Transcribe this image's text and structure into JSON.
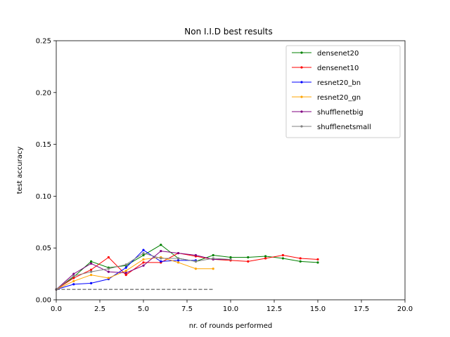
{
  "chart_data": {
    "type": "line",
    "title": "Non I.I.D best results",
    "xlabel": "nr. of rounds performed",
    "ylabel": "test accuracy",
    "xlim": [
      0,
      20
    ],
    "ylim": [
      0,
      0.25
    ],
    "xticks": [
      0,
      2.5,
      5,
      7.5,
      10,
      12.5,
      15,
      17.5,
      20
    ],
    "xtick_labels": [
      "0.0",
      "2.5",
      "5.0",
      "7.5",
      "10.0",
      "12.5",
      "15.0",
      "17.5",
      "20.0"
    ],
    "yticks": [
      0,
      0.05,
      0.1,
      0.15,
      0.2,
      0.25
    ],
    "ytick_labels": [
      "0.00",
      "0.05",
      "0.10",
      "0.15",
      "0.20",
      "0.25"
    ],
    "grid": false,
    "legend_position": "top-right",
    "series": [
      {
        "name": "densenet20",
        "color": "#008000",
        "x": [
          0,
          1,
          2,
          3,
          4,
          5,
          6,
          7,
          8,
          9,
          10,
          11,
          12,
          13,
          14,
          15
        ],
        "y": [
          0.01,
          0.022,
          0.037,
          0.031,
          0.033,
          0.043,
          0.053,
          0.04,
          0.037,
          0.043,
          0.041,
          0.041,
          0.042,
          0.04,
          0.037,
          0.036
        ]
      },
      {
        "name": "densenet10",
        "color": "#ff0000",
        "x": [
          0,
          1,
          2,
          3,
          4,
          5,
          6,
          7,
          8,
          9,
          10,
          11,
          12,
          13,
          14,
          15
        ],
        "y": [
          0.01,
          0.021,
          0.029,
          0.041,
          0.024,
          0.036,
          0.036,
          0.045,
          0.042,
          0.039,
          0.038,
          0.037,
          0.04,
          0.043,
          0.04,
          0.039
        ]
      },
      {
        "name": "resnet20_bn",
        "color": "#0000ff",
        "x": [
          0,
          1,
          2,
          3,
          4,
          5,
          6,
          7,
          8
        ],
        "y": [
          0.01,
          0.015,
          0.016,
          0.02,
          0.031,
          0.048,
          0.037,
          0.038,
          0.038
        ]
      },
      {
        "name": "resnet20_gn",
        "color": "#ffa500",
        "x": [
          0,
          1,
          2,
          3,
          4,
          5,
          6,
          7,
          8,
          9
        ],
        "y": [
          0.01,
          0.018,
          0.024,
          0.021,
          0.028,
          0.039,
          0.041,
          0.036,
          0.03,
          0.03
        ]
      },
      {
        "name": "shufflenetbig",
        "color": "#800080",
        "x": [
          0,
          1,
          2,
          3,
          4,
          5,
          6,
          7,
          8,
          9,
          10
        ],
        "y": [
          0.01,
          0.025,
          0.035,
          0.027,
          0.026,
          0.033,
          0.047,
          0.045,
          0.043,
          0.039,
          0.039
        ]
      },
      {
        "name": "shufflenetsmall",
        "color": "#808080",
        "x": [
          0,
          1,
          2,
          3,
          4,
          5,
          6,
          7,
          8,
          9,
          10
        ],
        "y": [
          0.01,
          0.023,
          0.027,
          0.03,
          0.034,
          0.045,
          0.04,
          0.04,
          0.037,
          0.04,
          0.039
        ]
      }
    ],
    "baselines": [
      {
        "style": "dashed",
        "x": [
          0,
          9
        ],
        "y": [
          0.01,
          0.01
        ],
        "colors": [
          "#008000",
          "#ff0000",
          "#0000ff",
          "#ffa500",
          "#800080",
          "#808080"
        ]
      }
    ]
  }
}
